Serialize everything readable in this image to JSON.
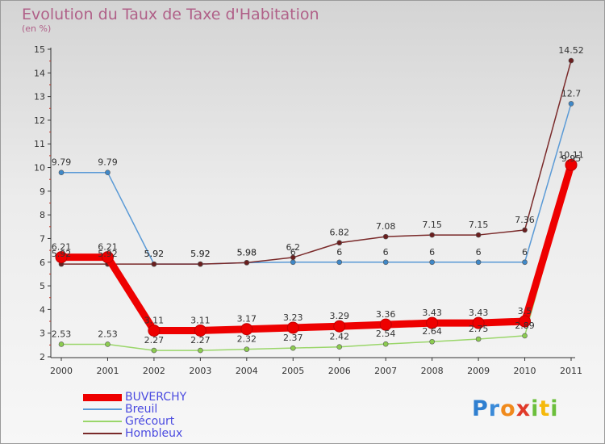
{
  "title": "Evolution du Taux de Taxe d'Habitation",
  "subtitle": "(en %)",
  "logo": {
    "text": "Proxiti",
    "letters": [
      "P",
      "r",
      "o",
      "x",
      "i",
      "t",
      "i"
    ],
    "colors": [
      "#2f7fd0",
      "#3a8ad8",
      "#f08a1c",
      "#e03a2a",
      "#6cbf3c",
      "#f5b90b",
      "#6cbf3c"
    ]
  },
  "chart_data": {
    "type": "line",
    "x": [
      "2000",
      "2001",
      "2002",
      "2003",
      "2004",
      "2005",
      "2006",
      "2007",
      "2008",
      "2009",
      "2010",
      "2011"
    ],
    "ylim": [
      2,
      15
    ],
    "yticks": [
      "2",
      "3",
      "4",
      "5",
      "6",
      "7",
      "8",
      "9",
      "10",
      "11",
      "12",
      "13",
      "14",
      "15"
    ],
    "grid": false,
    "legend_position": "bottom-left",
    "series": [
      {
        "name": "BUVERCHY",
        "color": "#ee0000",
        "values": [
          6.21,
          6.21,
          3.11,
          3.11,
          3.17,
          3.23,
          3.29,
          3.36,
          3.43,
          3.43,
          3.5,
          10.11
        ],
        "labels": [
          "6.21",
          "6.21",
          "3.11",
          "3.11",
          "3.17",
          "3.23",
          "3.29",
          "3.36",
          "3.43",
          "3.43",
          "3.5",
          "10.11"
        ]
      },
      {
        "name": "Breuil",
        "color": "#5a9ad6",
        "values": [
          9.79,
          9.79,
          5.92,
          5.92,
          5.98,
          6,
          6,
          6,
          6,
          6,
          6,
          12.7
        ],
        "labels": [
          "9.79",
          "9.79",
          "5.92",
          "5.92",
          "5.98",
          "6",
          "6",
          "6",
          "6",
          "6",
          "6",
          "12.7"
        ]
      },
      {
        "name": "Grécourt",
        "color": "#9ad66a",
        "values": [
          2.53,
          2.53,
          2.27,
          2.27,
          2.32,
          2.37,
          2.42,
          2.54,
          2.64,
          2.75,
          2.89,
          9.95
        ],
        "labels": [
          "2.53",
          "2.53",
          "2.27",
          "2.27",
          "2.32",
          "2.37",
          "2.42",
          "2.54",
          "2.64",
          "2.75",
          "2.89",
          "9.95"
        ]
      },
      {
        "name": "Hombleux",
        "color": "#7a2a2a",
        "values": [
          5.92,
          5.92,
          5.92,
          5.92,
          5.98,
          6.2,
          6.82,
          7.08,
          7.15,
          7.15,
          7.36,
          14.52
        ],
        "labels": [
          "5.92",
          "5.92",
          "5.92",
          "5.92",
          "5.98",
          "6.2",
          "6.82",
          "7.08",
          "7.15",
          "7.15",
          "7.36",
          "14.52"
        ]
      }
    ]
  }
}
